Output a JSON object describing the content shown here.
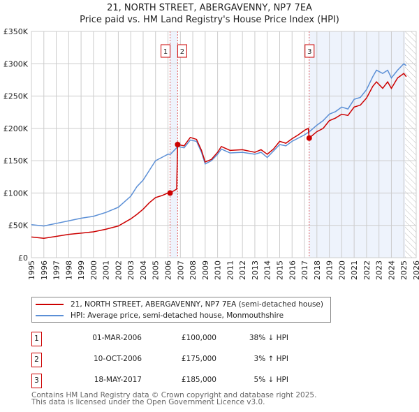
{
  "chart_data": {
    "type": "line",
    "title": "21, NORTH STREET, ABERGAVENNY, NP7 7EA",
    "subtitle": "Price paid vs. HM Land Registry's House Price Index (HPI)",
    "xlim": [
      1995,
      2026
    ],
    "ylim": [
      0,
      350000
    ],
    "x_ticks": [
      "1995",
      "1996",
      "1997",
      "1998",
      "1999",
      "2000",
      "2001",
      "2002",
      "2003",
      "2004",
      "2005",
      "2006",
      "2007",
      "2008",
      "2009",
      "2010",
      "2011",
      "2012",
      "2013",
      "2014",
      "2015",
      "2016",
      "2017",
      "2018",
      "2019",
      "2020",
      "2021",
      "2022",
      "2023",
      "2024",
      "2025",
      "2026"
    ],
    "y_ticks": [
      {
        "v": 0,
        "label": "£0"
      },
      {
        "v": 50000,
        "label": "£50K"
      },
      {
        "v": 100000,
        "label": "£100K"
      },
      {
        "v": 150000,
        "label": "£150K"
      },
      {
        "v": 200000,
        "label": "£200K"
      },
      {
        "v": 250000,
        "label": "£250K"
      },
      {
        "v": 300000,
        "label": "£300K"
      },
      {
        "v": 350000,
        "label": "£350K"
      }
    ],
    "grid": true,
    "series": [
      {
        "name": "21, NORTH STREET, ABERGAVENNY, NP7 7EA (semi-detached house)",
        "color": "#cc0000",
        "x": [
          1995,
          1996,
          1997,
          1998,
          1999,
          2000,
          2001,
          2002,
          2003,
          2003.5,
          2004,
          2004.5,
          2005,
          2005.5,
          2006,
          2006.17,
          2006.7,
          2006.78,
          2007.3,
          2007.8,
          2008.3,
          2008.7,
          2009,
          2009.5,
          2010,
          2010.3,
          2011,
          2012,
          2013,
          2013.5,
          2014,
          2014.5,
          2015,
          2015.5,
          2016,
          2016.5,
          2017,
          2017.3,
          2017.38,
          2018,
          2018.5,
          2019,
          2019.5,
          2020,
          2020.5,
          2021,
          2021.5,
          2022,
          2022.5,
          2022.8,
          2023.3,
          2023.7,
          2024,
          2024.5,
          2025,
          2025.2
        ],
        "y": [
          32,
          30,
          33,
          36,
          38,
          40,
          44,
          49,
          60,
          67,
          75,
          85,
          93,
          96,
          100,
          100,
          106,
          175,
          173,
          186,
          183,
          166,
          148,
          152,
          163,
          172,
          166,
          167,
          163,
          167,
          160,
          168,
          180,
          177,
          184,
          190,
          197,
          200,
          185,
          195,
          200,
          212,
          216,
          222,
          220,
          233,
          236,
          247,
          265,
          272,
          262,
          272,
          262,
          278,
          285,
          280
        ]
      },
      {
        "name": "HPI: Average price, semi-detached house, Monmouthshire",
        "color": "#5b8fd6",
        "x": [
          1995,
          1996,
          1996.5,
          1997,
          1998,
          1999,
          2000,
          2001,
          2002,
          2003,
          2003.5,
          2004,
          2004.5,
          2005,
          2005.5,
          2006,
          2006.2,
          2006.8,
          2007.3,
          2007.8,
          2008.3,
          2008.7,
          2009,
          2009.5,
          2010,
          2010.3,
          2011,
          2012,
          2013,
          2013.5,
          2014,
          2014.5,
          2015,
          2015.5,
          2016,
          2016.5,
          2017,
          2017.4,
          2018,
          2018.5,
          2019,
          2019.5,
          2020,
          2020.5,
          2021,
          2021.5,
          2022,
          2022.5,
          2022.8,
          2023.3,
          2023.7,
          2024,
          2024.5,
          2025,
          2025.2
        ],
        "y": [
          51,
          49,
          51,
          53,
          57,
          61,
          64,
          70,
          78,
          95,
          110,
          120,
          135,
          150,
          155,
          160,
          160,
          172,
          170,
          182,
          180,
          163,
          145,
          150,
          160,
          168,
          162,
          163,
          160,
          163,
          155,
          165,
          175,
          173,
          180,
          185,
          190,
          195,
          205,
          212,
          222,
          226,
          233,
          230,
          245,
          248,
          260,
          280,
          290,
          285,
          290,
          278,
          290,
          300,
          297
        ]
      }
    ],
    "y_units": "thousands GBP",
    "sales": [
      {
        "n": "1",
        "x": 2006.17,
        "date": "01-MAR-2006",
        "price": "£100,000",
        "value": 100,
        "hpi": "38% ↓ HPI"
      },
      {
        "n": "2",
        "x": 2006.78,
        "date": "10-OCT-2006",
        "price": "£175,000",
        "value": 175,
        "hpi": "3% ↑ HPI"
      },
      {
        "n": "3",
        "x": 2017.38,
        "date": "18-MAY-2017",
        "price": "£185,000",
        "value": 185,
        "hpi": "5% ↓ HPI"
      }
    ],
    "shaded": [
      [
        2006.17,
        2006.78
      ],
      [
        2017.38,
        2025.1
      ]
    ],
    "forecast_start": 2025.1,
    "legend_position": "below"
  },
  "footer": [
    "Contains HM Land Registry data © Crown copyright and database right 2025.",
    "This data is licensed under the Open Government Licence v3.0."
  ]
}
